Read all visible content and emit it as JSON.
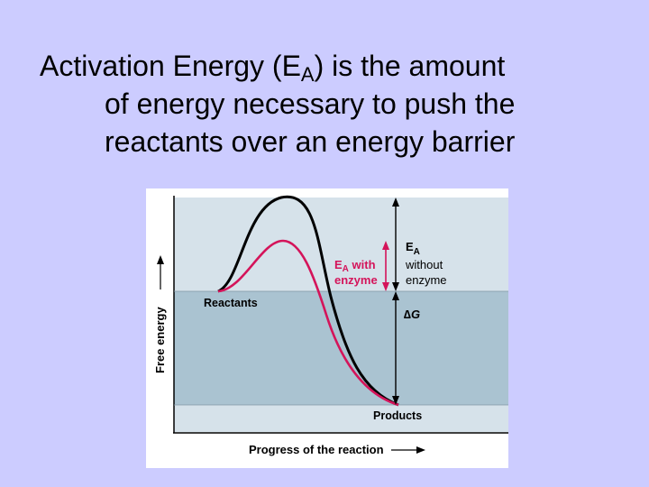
{
  "title": {
    "line1_pre": "Activation Energy (E",
    "line1_sub": "A",
    "line1_post": ") is the amount",
    "line2": "of energy necessary to push the",
    "line3": "reactants over an energy barrier"
  },
  "diagram": {
    "y_axis_label": "Free energy",
    "x_axis_label": "Progress of the reaction",
    "reactants_label": "Reactants",
    "products_label": "Products",
    "ea_with_enzyme": {
      "main": "E",
      "sub": "A",
      "rest": " with",
      "line2": "enzyme"
    },
    "ea_without_enzyme": {
      "main": "E",
      "sub": "A",
      "line2": "without",
      "line3": "enzyme"
    },
    "delta_g": {
      "delta": "∆",
      "g": "G"
    },
    "colors": {
      "background": "#ccccff",
      "panel_light": "#d6e2ea",
      "panel_dark": "#aac3d1",
      "curve_without_enzyme": "#000000",
      "curve_with_enzyme": "#d4145a",
      "ea_with_label": "#d4145a"
    }
  }
}
